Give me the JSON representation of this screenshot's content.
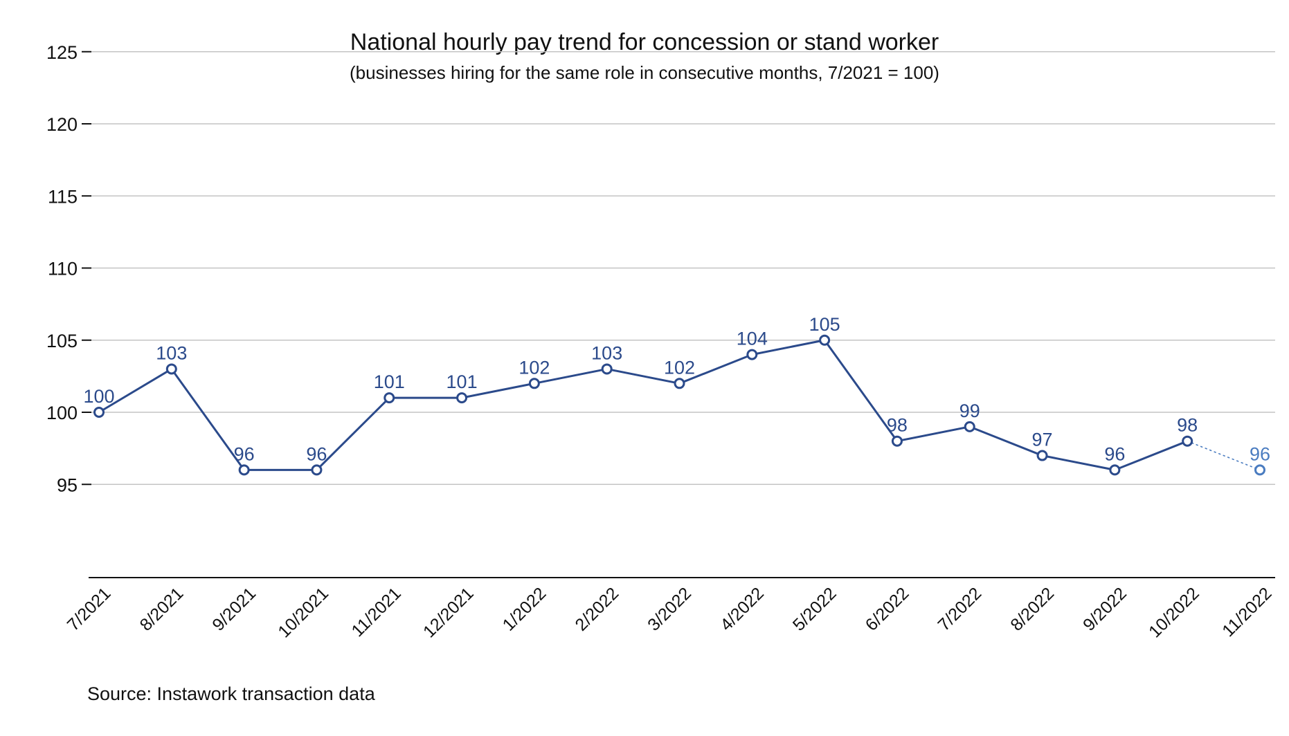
{
  "chart_data": {
    "type": "line",
    "title": "National hourly pay trend for concession or stand worker",
    "subtitle": "(businesses hiring for the same role in consecutive months, 7/2021 = 100)",
    "source": "Source: Instawork transaction data",
    "categories": [
      "7/2021",
      "8/2021",
      "9/2021",
      "10/2021",
      "11/2021",
      "12/2021",
      "1/2022",
      "2/2022",
      "3/2022",
      "4/2022",
      "5/2022",
      "6/2022",
      "7/2022",
      "8/2022",
      "9/2022",
      "10/2022",
      "11/2022"
    ],
    "series": [
      {
        "values": [
          100,
          103,
          96,
          96,
          101,
          101,
          102,
          103,
          102,
          104,
          105,
          98,
          99,
          97,
          96,
          98,
          96
        ]
      }
    ],
    "preliminary_from_index": 15,
    "y_ticks": [
      95,
      100,
      105,
      110,
      115,
      120,
      125
    ],
    "ylim": [
      93,
      125
    ],
    "grid": true,
    "colors": {
      "line": "#2b4a8b",
      "preliminary": "#4a7cc0",
      "grid": "#c4c4c4",
      "axis": "#111111"
    }
  }
}
